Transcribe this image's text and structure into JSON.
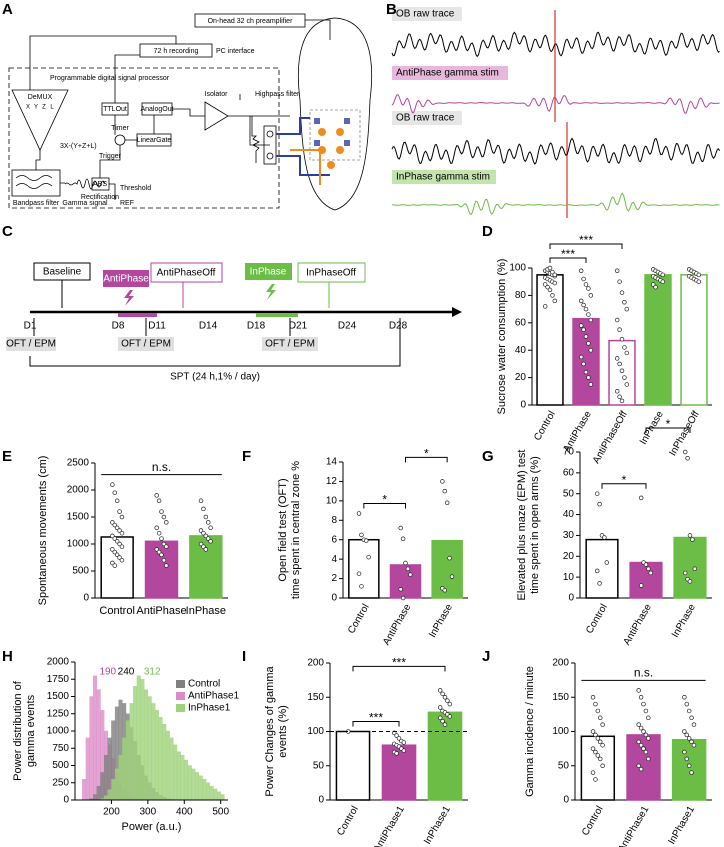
{
  "panel_labels": [
    "A",
    "B",
    "C",
    "D",
    "E",
    "F",
    "G",
    "H",
    "I",
    "J"
  ],
  "diagram": {
    "preamp": "On-head 32 ch preamplifier",
    "recording": "72 h recording",
    "pc": "PC interface",
    "dsp": "Programmable digital signal processor",
    "demux": "DeMUX",
    "channels": [
      "X",
      "Y",
      "Z",
      "L"
    ],
    "formula": "3X-(Y+Z+L)",
    "ttl": "TTLOut",
    "analog": "AnalogOut",
    "isolator": "Isolator",
    "highpass": "Highpass filter",
    "timer": "Timer",
    "gate": "LinearGate",
    "trigger": "Trigger",
    "abs": "ABS",
    "rect": "Rectification",
    "threshold": "Threshold",
    "ref": "REF",
    "bandpass": "Bandpass filter",
    "gamma": "Gamma signal"
  },
  "traces": [
    "OB raw trace",
    "AntiPhase gamma stim",
    "OB raw trace",
    "InPhase gamma stim"
  ],
  "timeline": {
    "phases": [
      "Baseline",
      "AntiPhase",
      "AntiPhaseOff",
      "InPhase",
      "InPhaseOff"
    ],
    "days": [
      "D1",
      "D8",
      "D11",
      "D14",
      "D18",
      "D21",
      "D24",
      "D28"
    ],
    "tests": [
      "OFT / EPM",
      "OFT / EPM",
      "OFT / EPM"
    ],
    "spt": "SPT (24 h,1% / day)"
  },
  "chart_data": [
    {
      "type": "bar",
      "ylabel": [
        "Sucrose water consumption (%)"
      ],
      "categories": [
        "Control",
        "AntiPhase",
        "AntiPhaseOff",
        "InPhase",
        "InPhaseOff"
      ],
      "values": [
        95,
        63,
        47,
        95,
        95
      ],
      "colors": [
        "#000000",
        "#b3479d",
        "#b3479d",
        "#6cbd45",
        "#6cbd45"
      ],
      "fill_styles": [
        "outline",
        "solid",
        "outline",
        "solid",
        "outline"
      ],
      "points": [
        [
          98,
          97,
          96,
          95,
          94,
          93,
          92,
          91,
          90,
          89,
          88,
          86,
          84,
          80,
          76,
          72,
          99,
          100,
          97,
          95
        ],
        [
          98,
          92,
          88,
          85,
          80,
          76,
          73,
          70,
          66,
          62,
          58,
          55,
          50,
          45,
          40,
          35,
          30,
          24,
          20,
          15
        ],
        [
          98,
          90,
          82,
          75,
          70,
          62,
          55,
          48,
          42,
          38,
          34,
          30,
          25,
          20,
          15,
          10,
          6,
          3
        ],
        [
          99,
          98,
          97,
          96,
          95,
          94,
          93,
          92,
          91,
          90,
          88,
          86
        ],
        [
          99,
          98,
          97,
          96,
          95,
          94,
          93,
          92,
          91,
          90
        ]
      ],
      "ylim": [
        0,
        100
      ],
      "yticks": [
        0,
        20,
        40,
        60,
        80,
        100
      ],
      "rotate_labels": true,
      "annotations": [
        {
          "label": "***",
          "between": [
            "Control",
            "AntiPhase"
          ]
        },
        {
          "label": "***",
          "between": [
            "Control",
            "AntiPhaseOff"
          ]
        }
      ]
    },
    {
      "type": "bar",
      "ylabel": [
        "Spontaneous movements (cm)"
      ],
      "categories": [
        "Control",
        "AntiPhase",
        "InPhase"
      ],
      "values": [
        1130,
        1050,
        1150
      ],
      "colors": [
        "#000000",
        "#b3479d",
        "#6cbd45"
      ],
      "fill_styles": [
        "outline",
        "solid",
        "solid"
      ],
      "points": [
        [
          2100,
          1950,
          1800,
          1600,
          1500,
          1400,
          1350,
          1300,
          1250,
          1200,
          1150,
          1100,
          1050,
          1000,
          950,
          900,
          850,
          800,
          750,
          700,
          650,
          600
        ],
        [
          1900,
          1800,
          1600,
          1500,
          1400,
          1300,
          1200,
          1100,
          1000,
          950,
          900,
          850,
          800,
          700,
          600
        ],
        [
          1800,
          1650,
          1500,
          1400,
          1300,
          1250,
          1200,
          1150,
          1100,
          1050,
          1000,
          950,
          900
        ]
      ],
      "ylim": [
        0,
        2500
      ],
      "yticks": [
        0,
        500,
        1000,
        1500,
        2000,
        2500
      ],
      "rotate_labels": false,
      "annotations": [
        {
          "label": "n.s.",
          "between": [
            "Control",
            "InPhase"
          ]
        }
      ]
    },
    {
      "type": "bar",
      "ylabel": [
        "Open field test (OFT)",
        "time spent in central zone %"
      ],
      "categories": [
        "Control",
        "AntiPhase",
        "InPhase"
      ],
      "values": [
        6.0,
        3.4,
        5.9
      ],
      "colors": [
        "#000000",
        "#b3479d",
        "#6cbd45"
      ],
      "fill_styles": [
        "outline",
        "solid",
        "solid"
      ],
      "points": [
        [
          8.7,
          6.5,
          6.0,
          5.9,
          4.2,
          2.5,
          1.2
        ],
        [
          7.2,
          6.1,
          3.6,
          3.0,
          2.4,
          0.9,
          0
        ],
        [
          12,
          11,
          9.8,
          4.1,
          2.2,
          1.0,
          0.8
        ]
      ],
      "ylim": [
        0,
        14
      ],
      "yticks": [
        0,
        2,
        4,
        6,
        8,
        10,
        12,
        14
      ],
      "rotate_labels": true,
      "annotations": [
        {
          "label": "*",
          "between": [
            "Control",
            "AntiPhase"
          ]
        },
        {
          "label": "*",
          "between": [
            "AntiPhase",
            "InPhase"
          ]
        }
      ]
    },
    {
      "type": "bar",
      "ylabel": [
        "Elevated plus maze (EPM) test",
        "time spent in open arms (%)"
      ],
      "categories": [
        "Control",
        "AntiPhase",
        "InPhase"
      ],
      "values": [
        28,
        17,
        29
      ],
      "colors": [
        "#000000",
        "#b3479d",
        "#6cbd45"
      ],
      "fill_styles": [
        "outline",
        "solid",
        "solid"
      ],
      "points": [
        [
          50,
          45,
          30,
          29,
          17,
          13,
          7
        ],
        [
          48,
          17,
          16,
          14,
          12,
          6
        ],
        [
          70,
          67,
          30,
          28,
          14,
          12,
          9,
          8
        ]
      ],
      "ylim": [
        0,
        70
      ],
      "yticks": [
        0,
        10,
        20,
        30,
        40,
        50,
        60,
        70
      ],
      "rotate_labels": true,
      "annotations": [
        {
          "label": "*",
          "between": [
            "Control",
            "AntiPhase"
          ]
        },
        {
          "label": "*",
          "between": [
            "AntiPhase",
            "InPhase"
          ]
        }
      ]
    },
    {
      "type": "histogram",
      "xlabel": "Power (a.u.)",
      "ylabel": [
        "Power distribution of",
        "gamma events"
      ],
      "bins": [
        120,
        130,
        140,
        150,
        160,
        170,
        180,
        190,
        200,
        210,
        220,
        230,
        240,
        250,
        260,
        270,
        280,
        290,
        300,
        310,
        320,
        330,
        340,
        350,
        360,
        370,
        380,
        390,
        400,
        410,
        420,
        430,
        440,
        450,
        460,
        470,
        480,
        490,
        500,
        510
      ],
      "series": [
        {
          "name": "Control",
          "color": "#808080",
          "values": [
            0,
            0,
            20,
            80,
            200,
            400,
            650,
            900,
            1150,
            1350,
            1450,
            1400,
            1250,
            1050,
            850,
            650,
            500,
            350,
            250,
            170,
            110,
            70,
            40,
            20,
            10,
            0,
            0,
            0,
            0,
            0,
            0,
            0,
            0,
            0,
            0,
            0,
            0,
            0,
            0
          ]
        },
        {
          "name": "AntiPhase1",
          "color": "#dc8cc8",
          "values": [
            300,
            900,
            1500,
            1800,
            1600,
            1300,
            1000,
            800,
            600,
            400,
            250,
            150,
            80,
            40,
            20,
            10,
            0,
            0,
            0,
            0,
            0,
            0,
            0,
            0,
            0,
            0,
            0,
            0,
            0,
            0,
            0,
            0,
            0,
            0,
            0,
            0,
            0,
            0,
            0
          ]
        },
        {
          "name": "InPhase1",
          "color": "#9fd27a",
          "values": [
            0,
            0,
            0,
            0,
            0,
            20,
            60,
            150,
            300,
            450,
            650,
            900,
            1150,
            1400,
            1650,
            1800,
            1750,
            1600,
            1500,
            1400,
            1300,
            1200,
            1100,
            1000,
            900,
            800,
            700,
            650,
            580,
            500,
            450,
            400,
            350,
            300,
            250,
            200,
            160,
            120,
            80
          ]
        }
      ],
      "annotations": [
        {
          "x": 190,
          "color": "#b3479d"
        },
        {
          "x": 240,
          "color": "#000000"
        },
        {
          "x": 312,
          "color": "#6cbd45"
        }
      ],
      "xlim": [
        100,
        520
      ],
      "xticks": [
        200,
        300,
        400,
        500
      ],
      "ylim": [
        0,
        2000
      ],
      "yticks": [
        0,
        250,
        500,
        750,
        1000,
        1250,
        1500,
        1750,
        2000
      ],
      "legend": "upper right"
    },
    {
      "type": "bar",
      "ylabel": [
        "Power Changes of gamma",
        "events (%)"
      ],
      "categories": [
        "Control",
        "AntiPhase1",
        "InPhase1"
      ],
      "values": [
        100,
        80,
        128
      ],
      "colors": [
        "#000000",
        "#b3479d",
        "#6cbd45"
      ],
      "fill_styles": [
        "outline",
        "solid",
        "solid"
      ],
      "points": [
        [
          100
        ],
        [
          98,
          94,
          90,
          86,
          84,
          82,
          80,
          78,
          75,
          72,
          70,
          68
        ],
        [
          160,
          155,
          150,
          145,
          140,
          135,
          130,
          128,
          125,
          122,
          120,
          115,
          110
        ]
      ],
      "ylim": [
        0,
        200
      ],
      "yticks": [
        0,
        50,
        100,
        150,
        200
      ],
      "rotate_labels": true,
      "reference_line": 100,
      "annotations": [
        {
          "label": "***",
          "between": [
            "Control",
            "AntiPhase1"
          ]
        },
        {
          "label": "***",
          "between": [
            "Control",
            "InPhase1"
          ]
        }
      ]
    },
    {
      "type": "bar",
      "ylabel": [
        "Gamma incidence / minute"
      ],
      "categories": [
        "Control",
        "AntiPhase1",
        "InPhase1"
      ],
      "values": [
        93,
        95,
        88
      ],
      "colors": [
        "#000000",
        "#b3479d",
        "#6cbd45"
      ],
      "fill_styles": [
        "outline",
        "solid",
        "solid"
      ],
      "points": [
        [
          150,
          140,
          130,
          120,
          110,
          100,
          95,
          90,
          85,
          80,
          75,
          70,
          65,
          60,
          50,
          40,
          30
        ],
        [
          160,
          150,
          140,
          130,
          120,
          110,
          105,
          100,
          95,
          90,
          85,
          80,
          75,
          70,
          60,
          50,
          45
        ],
        [
          150,
          140,
          130,
          120,
          110,
          100,
          95,
          90,
          85,
          80,
          70,
          60,
          50,
          40
        ]
      ],
      "ylim": [
        0,
        200
      ],
      "yticks": [
        0,
        50,
        100,
        150,
        200
      ],
      "rotate_labels": true,
      "annotations": [
        {
          "label": "n.s.",
          "between": [
            "Control",
            "InPhase1"
          ]
        }
      ]
    }
  ]
}
